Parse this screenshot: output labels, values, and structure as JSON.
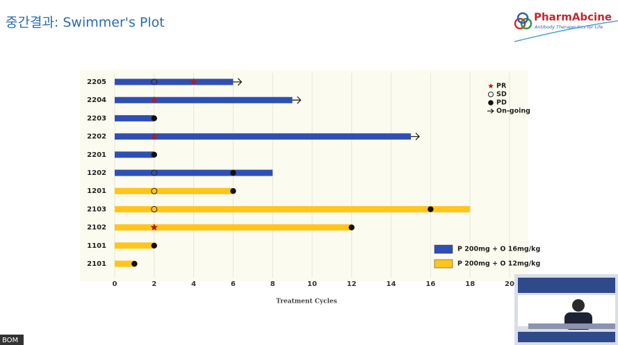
{
  "header": {
    "title": "중간결과: Swimmer's Plot",
    "logo": "PharmAbcine",
    "tagline": "Antibody Therapeutics for Life"
  },
  "footer": {
    "user": "BOM"
  },
  "chart_data": {
    "type": "swimmer",
    "xlabel": "Treatment Cycles",
    "categories": [
      "2205",
      "2204",
      "2203",
      "2202",
      "2201",
      "1202",
      "1201",
      "2103",
      "2102",
      "1101",
      "2101"
    ],
    "series": [
      {
        "name": "P 200mg + O 16mg/kg",
        "color": "#2f4fb5",
        "values": [
          6,
          9,
          2,
          15,
          2,
          8,
          null,
          null,
          null,
          null,
          null
        ]
      },
      {
        "name": "P 200mg + O 12mg/kg",
        "color": "#ffc51a",
        "values": [
          null,
          null,
          null,
          null,
          null,
          null,
          6,
          18,
          12,
          2,
          1
        ]
      }
    ],
    "markers": [
      {
        "name": "PR",
        "symbol": "star",
        "color": "#b51c1c",
        "values": [
          4,
          2,
          null,
          2,
          null,
          null,
          null,
          null,
          2,
          null,
          null
        ]
      },
      {
        "name": "SD",
        "symbol": "open-circle",
        "color": "#222222",
        "values": [
          2,
          null,
          null,
          null,
          null,
          2,
          2,
          2,
          null,
          null,
          null
        ]
      },
      {
        "name": "PD",
        "symbol": "circle",
        "color": "#111111",
        "values": [
          null,
          null,
          2,
          null,
          2,
          6,
          6,
          16,
          12,
          2,
          1
        ]
      },
      {
        "name": "On-going",
        "symbol": "arrow",
        "color": "#222222",
        "values": [
          6,
          9,
          null,
          15,
          null,
          null,
          null,
          null,
          null,
          null,
          null
        ]
      }
    ],
    "xlim": [
      0,
      20
    ],
    "xticks": [
      0,
      2,
      4,
      6,
      8,
      10,
      12,
      14,
      16,
      18,
      20
    ],
    "grid": true
  }
}
